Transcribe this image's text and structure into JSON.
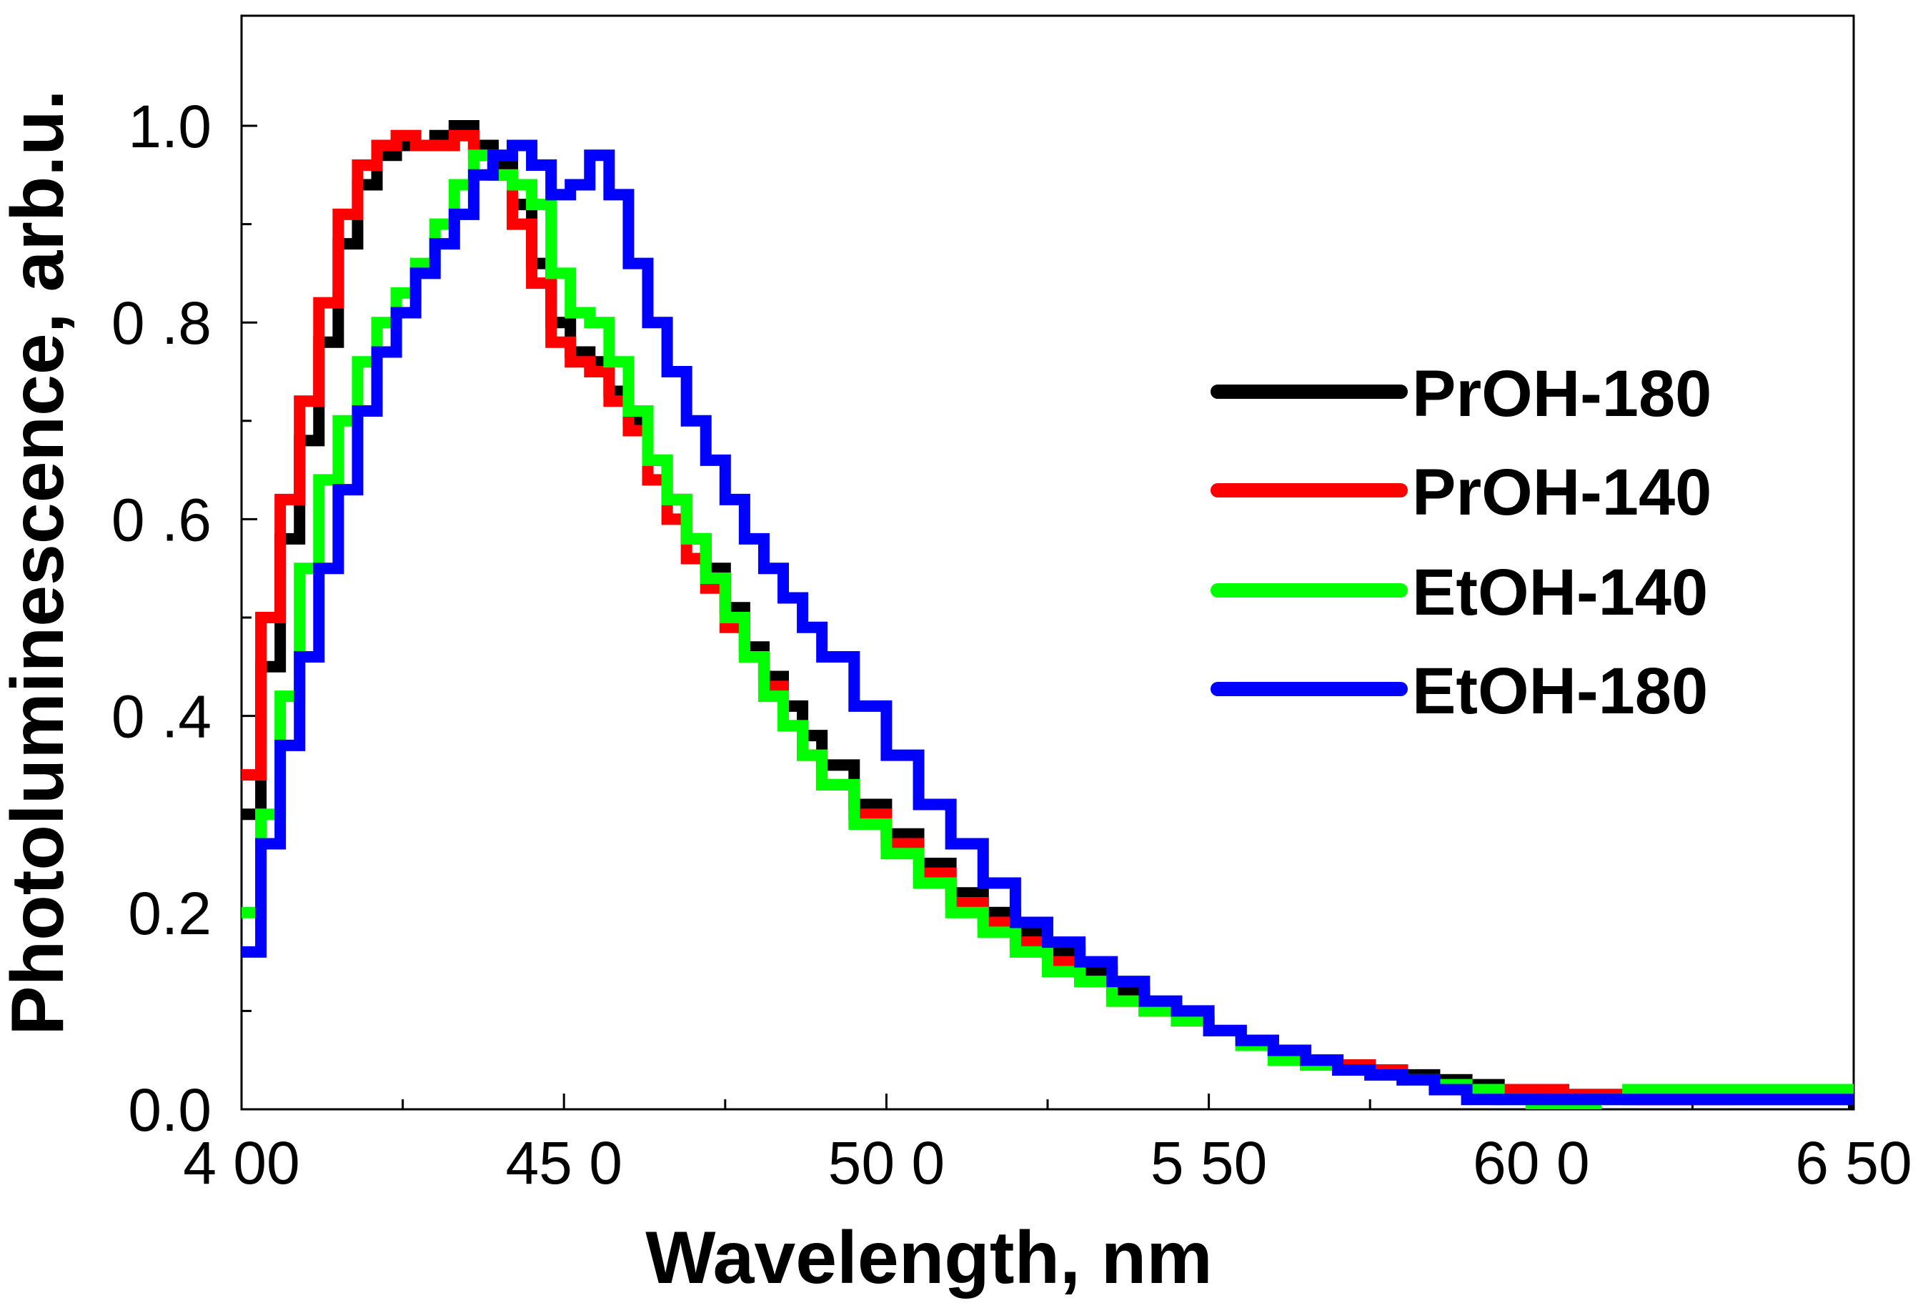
{
  "chart_data": {
    "type": "line",
    "title": "",
    "xlabel": "Wavelength, nm",
    "ylabel": "Photoluminescence, arb.u.",
    "xlim": [
      400,
      650
    ],
    "ylim": [
      0.0,
      1.1
    ],
    "xticks": [
      400,
      450,
      500,
      550,
      600,
      650
    ],
    "xtick_labels": [
      "4 00",
      "45 0",
      "50 0",
      "5 50",
      "60 0",
      "6 50"
    ],
    "yticks": [
      0.0,
      0.2,
      0.4,
      0.6,
      0.8,
      1.0
    ],
    "ytick_labels": [
      "0.0",
      "0.2",
      "0 .4",
      "0 .6",
      "0 .8",
      "1.0"
    ],
    "grid": false,
    "legend_position": "right",
    "x": [
      400,
      403,
      406,
      409,
      412,
      415,
      418,
      421,
      424,
      427,
      430,
      433,
      436,
      439,
      442,
      445,
      448,
      451,
      454,
      457,
      460,
      463,
      466,
      469,
      472,
      475,
      478,
      481,
      484,
      487,
      490,
      495,
      500,
      505,
      510,
      515,
      520,
      525,
      530,
      535,
      540,
      545,
      550,
      555,
      560,
      565,
      570,
      575,
      580,
      585,
      590,
      595,
      600,
      605,
      610,
      615,
      620,
      625,
      630,
      635,
      640,
      645,
      650
    ],
    "series": [
      {
        "name": "PrOH-180",
        "color": "#000000",
        "values": [
          0.3,
          0.45,
          0.58,
          0.68,
          0.78,
          0.88,
          0.94,
          0.97,
          0.98,
          0.98,
          0.99,
          1.0,
          0.98,
          0.96,
          0.92,
          0.86,
          0.8,
          0.77,
          0.76,
          0.73,
          0.7,
          0.66,
          0.62,
          0.58,
          0.55,
          0.51,
          0.47,
          0.44,
          0.41,
          0.38,
          0.35,
          0.31,
          0.28,
          0.25,
          0.22,
          0.2,
          0.18,
          0.16,
          0.14,
          0.12,
          0.1,
          0.09,
          0.08,
          0.07,
          0.06,
          0.05,
          0.045,
          0.04,
          0.035,
          0.03,
          0.025,
          0.02,
          0.02,
          0.015,
          0.015,
          0.01,
          0.01,
          0.01,
          0.01,
          0.01,
          0.01,
          0.01,
          0.0
        ]
      },
      {
        "name": "PrOH-140",
        "color": "#ff0000",
        "values": [
          0.34,
          0.5,
          0.62,
          0.72,
          0.82,
          0.91,
          0.96,
          0.98,
          0.99,
          0.98,
          0.98,
          0.99,
          0.97,
          0.95,
          0.9,
          0.84,
          0.78,
          0.76,
          0.75,
          0.72,
          0.69,
          0.64,
          0.6,
          0.56,
          0.53,
          0.49,
          0.46,
          0.43,
          0.39,
          0.36,
          0.33,
          0.3,
          0.27,
          0.24,
          0.21,
          0.19,
          0.17,
          0.15,
          0.13,
          0.11,
          0.1,
          0.09,
          0.08,
          0.07,
          0.06,
          0.05,
          0.045,
          0.04,
          0.03,
          0.025,
          0.02,
          0.02,
          0.02,
          0.015,
          0.015,
          0.01,
          0.01,
          0.01,
          0.015,
          0.02,
          0.02,
          0.02,
          0.02
        ]
      },
      {
        "name": "EtOH-140",
        "color": "#00ff00",
        "values": [
          0.2,
          0.3,
          0.42,
          0.55,
          0.64,
          0.7,
          0.76,
          0.8,
          0.83,
          0.86,
          0.9,
          0.94,
          0.97,
          0.95,
          0.94,
          0.92,
          0.85,
          0.81,
          0.8,
          0.76,
          0.71,
          0.66,
          0.62,
          0.58,
          0.54,
          0.5,
          0.46,
          0.42,
          0.39,
          0.36,
          0.33,
          0.29,
          0.26,
          0.23,
          0.2,
          0.18,
          0.16,
          0.14,
          0.13,
          0.11,
          0.1,
          0.09,
          0.08,
          0.065,
          0.05,
          0.045,
          0.04,
          0.035,
          0.03,
          0.025,
          0.02,
          0.01,
          0.005,
          0.0,
          0.01,
          0.02,
          0.02,
          0.02,
          0.02,
          0.02,
          0.02,
          0.02,
          0.02
        ]
      },
      {
        "name": "EtOH-180",
        "color": "#0000ff",
        "values": [
          0.16,
          0.27,
          0.37,
          0.46,
          0.55,
          0.63,
          0.71,
          0.77,
          0.81,
          0.85,
          0.88,
          0.91,
          0.95,
          0.97,
          0.98,
          0.96,
          0.93,
          0.94,
          0.97,
          0.93,
          0.86,
          0.8,
          0.75,
          0.7,
          0.66,
          0.62,
          0.58,
          0.55,
          0.52,
          0.49,
          0.46,
          0.41,
          0.36,
          0.31,
          0.27,
          0.23,
          0.19,
          0.17,
          0.15,
          0.13,
          0.11,
          0.1,
          0.08,
          0.07,
          0.06,
          0.05,
          0.04,
          0.035,
          0.03,
          0.02,
          0.01,
          0.01,
          0.01,
          0.01,
          0.01,
          0.01,
          0.01,
          0.01,
          0.01,
          0.01,
          0.01,
          0.01,
          0.01
        ]
      }
    ]
  }
}
